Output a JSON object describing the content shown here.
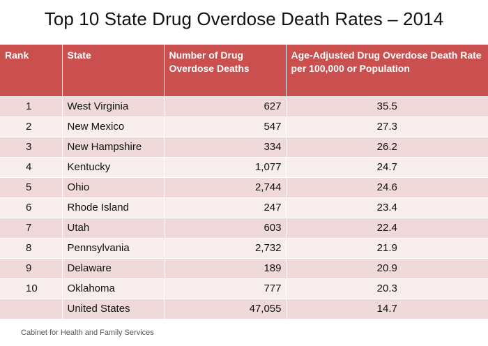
{
  "title": "Top 10 State Drug Overdose Death Rates – 2014",
  "source": "Cabinet for Health and Family Services",
  "colors": {
    "header": "#c9504f",
    "row_odd": "#f0d9d9",
    "row_even": "#f8eded"
  },
  "chart_data": {
    "type": "table",
    "title": "Top 10 State Drug Overdose Death Rates – 2014",
    "columns": [
      "Rank",
      "State",
      "Number of Drug Overdose Deaths",
      "Age-Adjusted Drug Overdose Death Rate per 100,000 or Population"
    ],
    "rows": [
      [
        "1",
        "West Virginia",
        "627",
        "35.5"
      ],
      [
        "2",
        "New Mexico",
        "547",
        "27.3"
      ],
      [
        "3",
        "New Hampshire",
        "334",
        "26.2"
      ],
      [
        "4",
        "Kentucky",
        "1,077",
        "24.7"
      ],
      [
        "5",
        "Ohio",
        "2,744",
        "24.6"
      ],
      [
        "6",
        "Rhode Island",
        "247",
        "23.4"
      ],
      [
        "7",
        "Utah",
        "603",
        "22.4"
      ],
      [
        "8",
        "Pennsylvania",
        "2,732",
        "21.9"
      ],
      [
        "9",
        "Delaware",
        "189",
        "20.9"
      ],
      [
        "10",
        "Oklahoma",
        "777",
        "20.3"
      ],
      [
        "",
        "United States",
        "47,055",
        "14.7"
      ]
    ]
  }
}
